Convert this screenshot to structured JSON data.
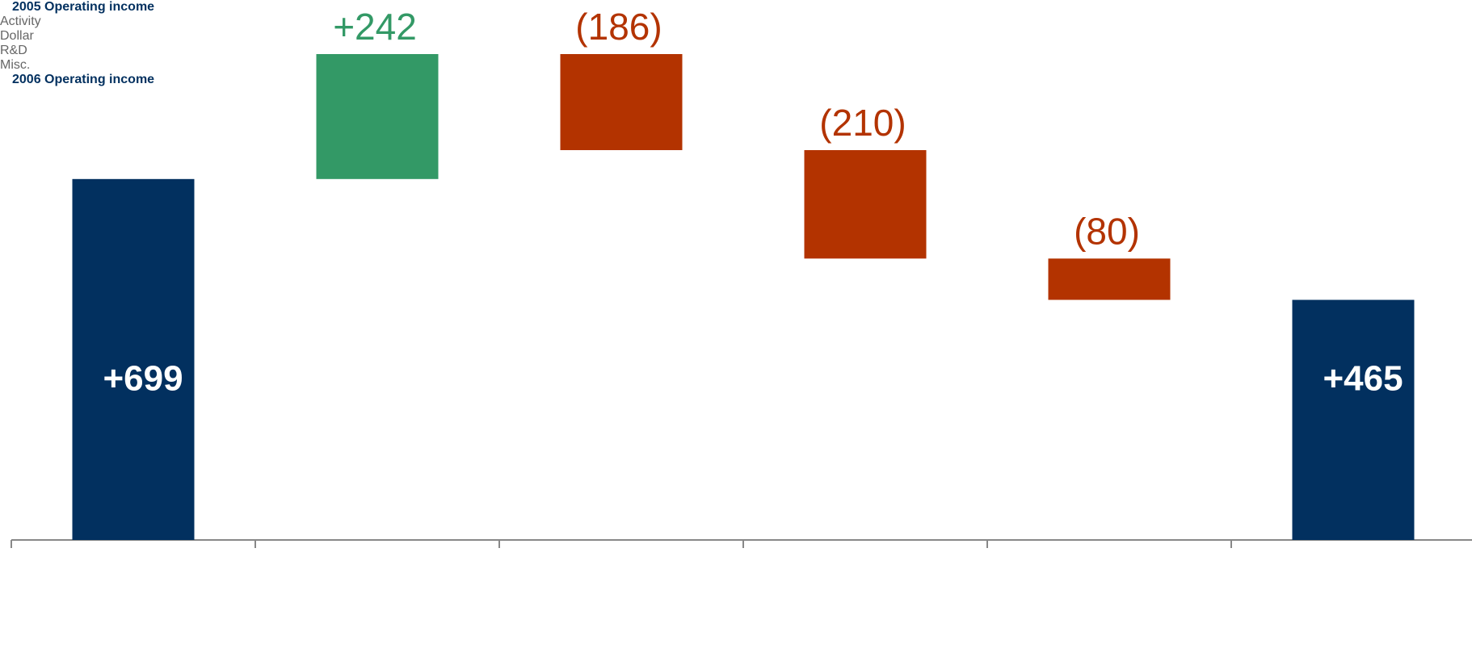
{
  "chart_data": {
    "type": "waterfall",
    "categories": [
      "2005 Operating income",
      "Activity",
      "Dollar",
      "R&D",
      "Misc.",
      "2006 Operating income"
    ],
    "values": [
      699,
      242,
      -186,
      -210,
      -80,
      465
    ],
    "value_labels": [
      "+699",
      "+242",
      "(186)",
      "(210)",
      "(80)",
      "+465"
    ],
    "is_total": [
      true,
      false,
      false,
      false,
      false,
      true
    ],
    "colors": {
      "total": "#02305f",
      "increase": "#339966",
      "decrease": "#b33300"
    }
  }
}
